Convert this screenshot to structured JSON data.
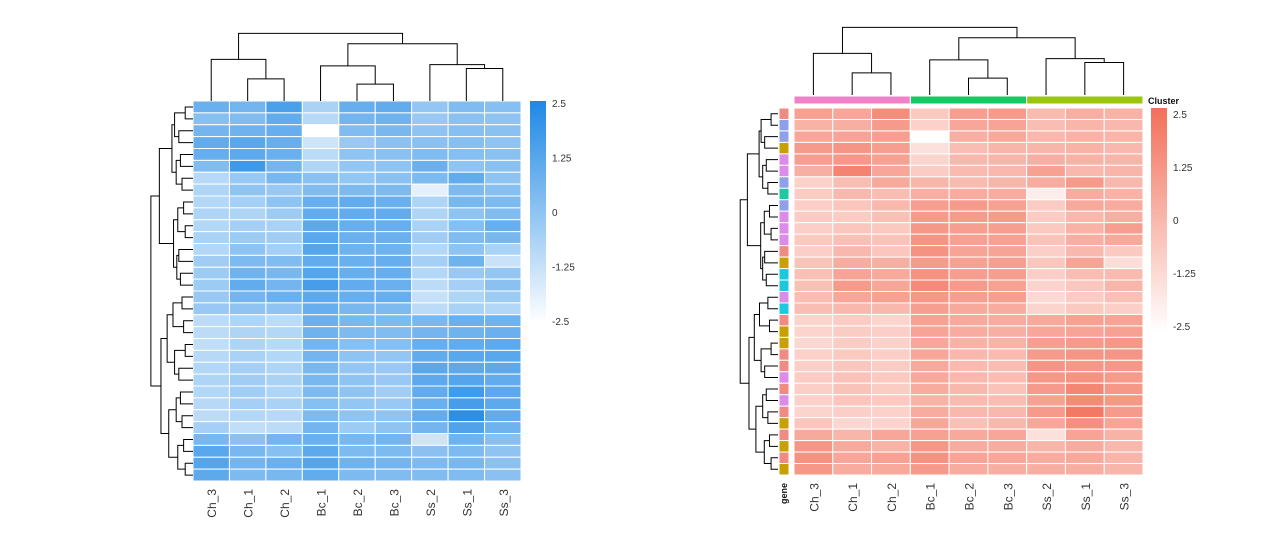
{
  "chart_data": [
    {
      "type": "heatmap",
      "title": "",
      "columns": [
        "Ch_3",
        "Ch_1",
        "Ch_2",
        "Bc_1",
        "Bc_2",
        "Bc_3",
        "Ss_2",
        "Ss_1",
        "Ss_3"
      ],
      "colorbar": {
        "ticks": [
          "2.5",
          "1.25",
          "0",
          "-1.25",
          "-2.5"
        ],
        "range": [
          -2.5,
          2.5
        ],
        "low_color": "#ffffff",
        "high_color": "#1e88e5"
      },
      "values": [
        [
          0.8,
          0.6,
          1.5,
          -0.6,
          0.9,
          1.0,
          -0.1,
          0.3,
          0.2
        ],
        [
          0.2,
          0.3,
          1.0,
          -0.9,
          0.6,
          0.7,
          -0.2,
          0.1,
          0.0
        ],
        [
          0.6,
          0.7,
          0.9,
          -2.5,
          0.3,
          0.5,
          0.0,
          0.2,
          0.1
        ],
        [
          1.0,
          1.2,
          0.9,
          -1.4,
          -0.2,
          0.1,
          0.1,
          0.2,
          0.0
        ],
        [
          0.9,
          1.1,
          0.8,
          -1.0,
          0.0,
          0.1,
          0.3,
          0.2,
          0.1
        ],
        [
          0.3,
          1.8,
          0.6,
          -0.7,
          -0.1,
          0.0,
          0.8,
          0.0,
          0.1
        ],
        [
          -0.9,
          -0.2,
          0.5,
          0.1,
          -0.1,
          0.1,
          0.4,
          1.0,
          0.0
        ],
        [
          -0.7,
          0.0,
          -0.2,
          0.3,
          0.4,
          0.4,
          -1.9,
          0.4,
          0.2
        ],
        [
          -0.8,
          -0.5,
          0.0,
          0.9,
          1.0,
          0.8,
          -0.7,
          0.5,
          0.4
        ],
        [
          -0.7,
          -0.7,
          -0.3,
          1.0,
          1.0,
          1.0,
          -0.7,
          0.0,
          0.3
        ],
        [
          -0.8,
          -0.5,
          -0.6,
          1.1,
          0.9,
          0.9,
          -0.6,
          0.2,
          0.9
        ],
        [
          -0.6,
          -0.3,
          -0.4,
          1.2,
          0.8,
          0.8,
          -0.4,
          0.3,
          0.5
        ],
        [
          -0.8,
          0.0,
          -0.5,
          1.3,
          0.7,
          0.7,
          -0.8,
          0.0,
          -0.6
        ],
        [
          -0.4,
          0.4,
          0.3,
          1.0,
          0.8,
          0.9,
          -0.5,
          0.7,
          -1.3
        ],
        [
          -0.3,
          0.7,
          0.5,
          1.3,
          0.9,
          0.9,
          -0.8,
          -0.2,
          -0.1
        ],
        [
          -0.3,
          1.0,
          0.6,
          1.6,
          1.0,
          0.8,
          -1.0,
          -0.5,
          0.1
        ],
        [
          -0.2,
          0.6,
          0.8,
          1.1,
          0.9,
          0.9,
          -1.2,
          -0.7,
          -0.3
        ],
        [
          -0.2,
          0.0,
          0.0,
          0.9,
          0.5,
          0.4,
          -1.0,
          -0.6,
          -0.8
        ],
        [
          -1.0,
          -0.7,
          -1.0,
          0.8,
          0.5,
          0.4,
          0.5,
          0.8,
          0.7
        ],
        [
          -1.0,
          -0.7,
          -0.8,
          0.7,
          0.4,
          0.3,
          0.6,
          0.7,
          0.8
        ],
        [
          -1.1,
          -0.7,
          -0.9,
          0.6,
          0.2,
          0.2,
          0.9,
          1.0,
          1.1
        ],
        [
          -0.9,
          -0.6,
          -0.8,
          0.6,
          0.0,
          -0.1,
          1.0,
          1.2,
          1.2
        ],
        [
          -0.8,
          -0.5,
          -0.7,
          0.5,
          -0.1,
          -0.2,
          1.2,
          1.1,
          1.1
        ],
        [
          -0.7,
          -0.4,
          -0.6,
          0.5,
          0.0,
          -0.2,
          1.1,
          1.3,
          1.0
        ],
        [
          -0.8,
          -0.4,
          -0.7,
          0.4,
          0.0,
          -0.4,
          1.0,
          1.7,
          1.1
        ],
        [
          -0.9,
          -0.5,
          -0.6,
          0.2,
          -0.1,
          -0.2,
          0.8,
          1.6,
          1.1
        ],
        [
          -1.0,
          -0.8,
          -0.9,
          0.4,
          0.0,
          0.0,
          1.0,
          2.2,
          1.0
        ],
        [
          -0.5,
          -1.1,
          -1.0,
          0.6,
          -0.3,
          0.0,
          0.6,
          1.4,
          0.7
        ],
        [
          0.5,
          0.1,
          0.6,
          0.8,
          0.5,
          0.6,
          -1.4,
          0.7,
          0.2
        ],
        [
          1.2,
          0.5,
          0.2,
          1.1,
          0.4,
          0.4,
          0.1,
          0.4,
          0.0
        ],
        [
          1.3,
          0.6,
          0.8,
          1.3,
          0.7,
          0.6,
          0.4,
          0.5,
          0.1
        ],
        [
          1.1,
          0.4,
          0.5,
          1.0,
          0.4,
          0.3,
          0.3,
          0.3,
          0.1
        ]
      ]
    },
    {
      "type": "heatmap",
      "title": "",
      "columns": [
        "Ch_3",
        "Ch_1",
        "Ch_2",
        "Bc_1",
        "Bc_2",
        "Bc_3",
        "Ss_2",
        "Ss_1",
        "Ss_3"
      ],
      "annotation_label": "Cluster",
      "row_annotation_label": "gene",
      "column_groups": [
        {
          "columns": [
            "Ch_3",
            "Ch_1",
            "Ch_2"
          ],
          "color": "#f080c8"
        },
        {
          "columns": [
            "Bc_1",
            "Bc_2",
            "Bc_3"
          ],
          "color": "#14c864"
        },
        {
          "columns": [
            "Ss_2",
            "Ss_1",
            "Ss_3"
          ],
          "color": "#9ac40e"
        }
      ],
      "row_annotation_colors": [
        "#f08a82",
        "#8ea0e8",
        "#8ea0e8",
        "#c8a000",
        "#dc8ce8",
        "#dc8ce8",
        "#8ea0e8",
        "#1ec8a0",
        "#8ea0e8",
        "#dc8ce8",
        "#dc8ce8",
        "#dc8ce8",
        "#f08a82",
        "#c8a000",
        "#1ec8dc",
        "#1ec8dc",
        "#dc8ce8",
        "#1ec8dc",
        "#f08a82",
        "#c8a000",
        "#c8a000",
        "#f08a82",
        "#f08a82",
        "#dc8ce8",
        "#f08a82",
        "#dc8ce8",
        "#f08a82",
        "#c8a000",
        "#f08a82",
        "#c8a000",
        "#f08a82",
        "#c8a000"
      ],
      "colorbar": {
        "ticks": [
          "2.5",
          "1.25",
          "0",
          "-1.25",
          "-2.5"
        ],
        "range": [
          -2.5,
          2.5
        ],
        "low_color": "#ffffff",
        "high_color": "#f2705a"
      },
      "values": [
        [
          0.8,
          0.6,
          1.5,
          -0.6,
          0.9,
          1.0,
          -0.1,
          0.3,
          0.2
        ],
        [
          0.2,
          0.3,
          1.0,
          -0.9,
          0.6,
          0.7,
          -0.2,
          0.1,
          0.0
        ],
        [
          0.6,
          0.7,
          0.9,
          -2.5,
          0.3,
          0.5,
          0.0,
          0.2,
          0.1
        ],
        [
          1.0,
          1.2,
          0.9,
          -1.4,
          -0.2,
          0.1,
          0.1,
          0.2,
          0.0
        ],
        [
          0.9,
          1.1,
          0.8,
          -1.0,
          0.0,
          0.1,
          0.3,
          0.2,
          0.1
        ],
        [
          0.3,
          1.8,
          0.6,
          -0.7,
          -0.1,
          0.0,
          0.8,
          0.0,
          0.1
        ],
        [
          -0.9,
          -0.2,
          0.5,
          0.1,
          -0.1,
          0.1,
          0.4,
          1.0,
          0.0
        ],
        [
          -0.7,
          0.0,
          -0.2,
          0.3,
          0.4,
          0.4,
          -1.9,
          0.4,
          0.2
        ],
        [
          -0.8,
          -0.5,
          0.0,
          0.9,
          1.0,
          0.8,
          -0.7,
          0.5,
          0.4
        ],
        [
          -0.7,
          -0.7,
          -0.3,
          1.0,
          1.0,
          1.0,
          -0.7,
          0.0,
          0.3
        ],
        [
          -0.8,
          -0.5,
          -0.6,
          1.1,
          0.9,
          0.9,
          -0.6,
          0.2,
          0.9
        ],
        [
          -0.6,
          -0.3,
          -0.4,
          1.2,
          0.8,
          0.8,
          -0.4,
          0.3,
          0.5
        ],
        [
          -0.8,
          0.0,
          -0.5,
          1.3,
          0.7,
          0.7,
          -0.8,
          0.0,
          -0.6
        ],
        [
          -0.4,
          0.4,
          0.3,
          1.0,
          0.8,
          0.9,
          -0.5,
          0.7,
          -1.3
        ],
        [
          -0.3,
          0.7,
          0.5,
          1.3,
          0.9,
          0.9,
          -0.8,
          -0.2,
          -0.1
        ],
        [
          -0.3,
          1.0,
          0.6,
          1.6,
          1.0,
          0.8,
          -1.0,
          -0.5,
          0.1
        ],
        [
          -0.2,
          0.6,
          0.8,
          1.1,
          0.9,
          0.9,
          -1.2,
          -0.7,
          -0.3
        ],
        [
          -0.2,
          0.0,
          0.0,
          0.9,
          0.5,
          0.4,
          -1.0,
          -0.6,
          -0.8
        ],
        [
          -1.0,
          -0.7,
          -1.0,
          0.8,
          0.5,
          0.4,
          0.5,
          0.8,
          0.7
        ],
        [
          -1.0,
          -0.7,
          -0.8,
          0.7,
          0.4,
          0.3,
          0.6,
          0.7,
          0.8
        ],
        [
          -1.1,
          -0.7,
          -0.9,
          0.6,
          0.2,
          0.2,
          0.9,
          1.0,
          1.1
        ],
        [
          -0.9,
          -0.6,
          -0.8,
          0.6,
          0.0,
          -0.1,
          1.0,
          1.2,
          1.2
        ],
        [
          -0.8,
          -0.5,
          -0.7,
          0.5,
          -0.1,
          -0.2,
          1.2,
          1.1,
          1.1
        ],
        [
          -0.7,
          -0.4,
          -0.6,
          0.5,
          0.0,
          -0.2,
          1.1,
          1.3,
          1.0
        ],
        [
          -0.8,
          -0.4,
          -0.7,
          0.4,
          0.0,
          -0.4,
          1.0,
          1.7,
          1.1
        ],
        [
          -0.9,
          -0.5,
          -0.6,
          0.2,
          -0.1,
          -0.2,
          0.8,
          1.6,
          1.1
        ],
        [
          -1.0,
          -0.8,
          -0.9,
          0.4,
          0.0,
          0.0,
          1.0,
          2.2,
          1.0
        ],
        [
          -0.5,
          -1.1,
          -1.0,
          0.6,
          -0.3,
          0.0,
          0.6,
          1.4,
          0.7
        ],
        [
          0.5,
          0.1,
          0.6,
          0.8,
          0.5,
          0.6,
          -1.4,
          0.7,
          0.2
        ],
        [
          1.2,
          0.5,
          0.2,
          1.1,
          0.4,
          0.4,
          0.1,
          0.4,
          0.0
        ],
        [
          1.3,
          0.6,
          0.8,
          1.3,
          0.7,
          0.6,
          0.4,
          0.5,
          0.1
        ],
        [
          1.1,
          0.4,
          0.5,
          1.0,
          0.4,
          0.3,
          0.3,
          0.3,
          0.1
        ]
      ]
    }
  ]
}
